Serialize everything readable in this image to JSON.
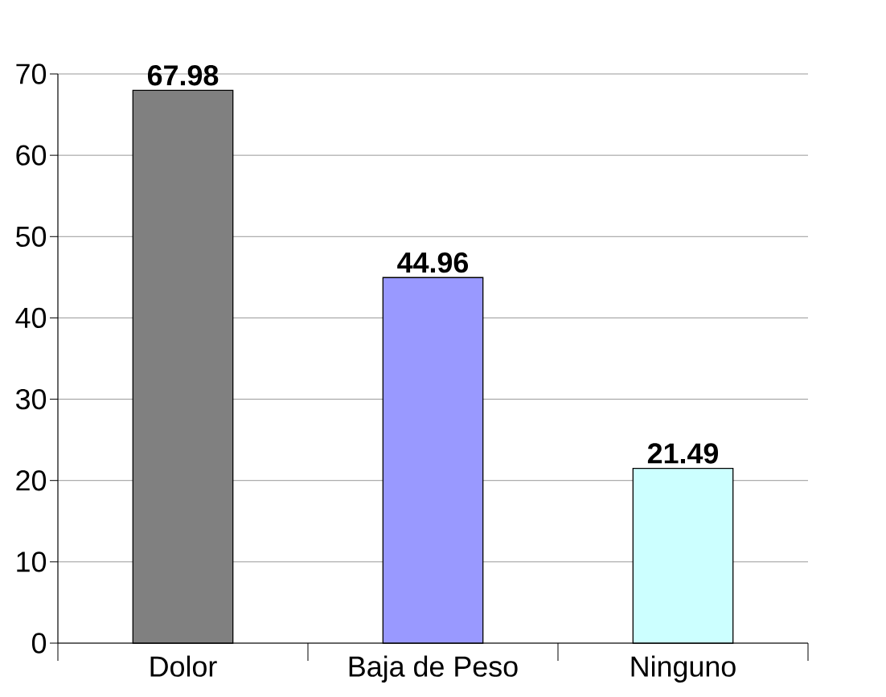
{
  "chart_data": {
    "type": "bar",
    "categories": [
      "Dolor",
      "Baja de Peso",
      "Ninguno"
    ],
    "values": [
      67.98,
      44.96,
      21.49
    ],
    "colors": [
      "#808080",
      "#9999ff",
      "#ccffff"
    ],
    "ylim": [
      0,
      70
    ],
    "yticks": [
      0,
      10,
      20,
      30,
      40,
      50,
      60,
      70
    ],
    "grid": "y",
    "data_labels": true
  }
}
